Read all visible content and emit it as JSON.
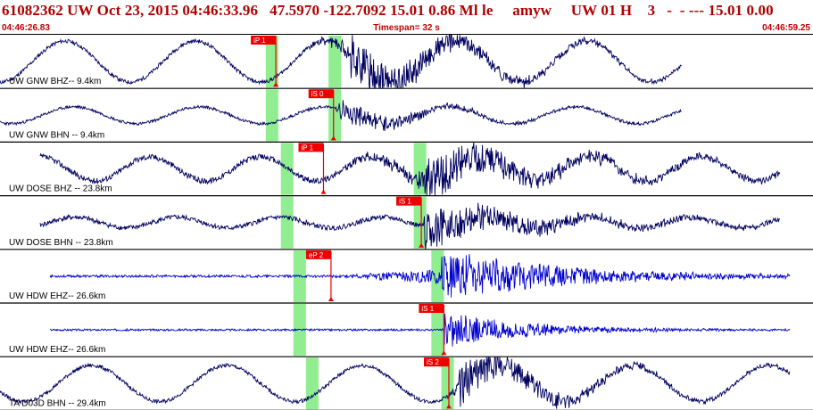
{
  "header": {
    "title": "61082362 UW Oct 23, 2015 04:46:33.96   47.5970 -122.7092 15.01 0.86 Ml le     amyw     UW 01 H    3   -  - --- 15.01 0.00",
    "start_time": "04:46:26.83",
    "timespan": "Timespan=  32 s",
    "end_time": "04:46:59.25"
  },
  "colors": {
    "title": "#b00000",
    "trace_short_period": "#000060",
    "trace_broadband": "#0000d0",
    "pick_flag": "#ee0000",
    "theoretical_window": "#90ee90"
  },
  "traces": [
    {
      "label": "UW GNW BHZ-- 9.4km",
      "pick": "iP 1",
      "seed": 11,
      "noise": 0.08,
      "wave_amp": 0.85,
      "period_s": 5.2,
      "onset_s": 11.9,
      "burst_s": 14.0,
      "burst_amp": 0.9,
      "decay_s": 4.0,
      "trace_start_s": 0.0,
      "trace_end_s": 27.2,
      "color": "#000060"
    },
    {
      "label": "UW GNW BHN -- 9.4km",
      "pick": "iS 0",
      "seed": 23,
      "noise": 0.06,
      "wave_amp": 0.35,
      "period_s": 5.0,
      "onset_s": 13.3,
      "burst_s": 13.5,
      "burst_amp": 0.5,
      "decay_s": 3.0,
      "trace_start_s": 0.0,
      "trace_end_s": 27.2,
      "color": "#000060"
    },
    {
      "label": "UW DOSE BHZ -- 23.8km",
      "pick": "iP 1",
      "seed": 37,
      "noise": 0.12,
      "wave_amp": 0.5,
      "period_s": 4.4,
      "onset_s": 13.0,
      "burst_s": 16.9,
      "burst_amp": 0.9,
      "decay_s": 4.5,
      "trace_start_s": 1.6,
      "trace_end_s": 31.1,
      "color": "#000060"
    },
    {
      "label": "UW DOSE BHN -- 23.8km",
      "pick": "iS 1",
      "seed": 41,
      "noise": 0.1,
      "wave_amp": 0.22,
      "period_s": 4.1,
      "onset_s": 16.8,
      "burst_s": 16.9,
      "burst_amp": 0.85,
      "decay_s": 4.0,
      "trace_start_s": 1.6,
      "trace_end_s": 31.1,
      "color": "#000060"
    },
    {
      "label": "UW HDW EHZ-- 26.6km",
      "pick": "eP 2",
      "seed": 53,
      "noise": 0.05,
      "wave_amp": 0.0,
      "period_s": 3.0,
      "onset_s": 13.3,
      "burst_s": 17.6,
      "burst_amp": 1.0,
      "decay_s": 4.8,
      "trace_start_s": 2.0,
      "trace_end_s": 31.5,
      "color": "#0000d0"
    },
    {
      "label": "UW HDW EHZ-- 26.6km",
      "pick": "iS 1",
      "seed": 67,
      "noise": 0.04,
      "wave_amp": 0.0,
      "period_s": 3.0,
      "onset_s": 17.6,
      "burst_s": 17.7,
      "burst_amp": 0.7,
      "decay_s": 3.2,
      "trace_start_s": 2.0,
      "trace_end_s": 31.5,
      "color": "#0000d0"
    },
    {
      "label": "TA D03D BHN -- 29.4km",
      "pick": "iS 2",
      "seed": 79,
      "noise": 0.08,
      "wave_amp": 0.75,
      "period_s": 5.4,
      "onset_s": 17.7,
      "burst_s": 18.3,
      "burst_amp": 0.8,
      "decay_s": 3.5,
      "trace_start_s": 0.0,
      "trace_end_s": 31.5,
      "color": "#000060"
    }
  ],
  "time_axis": {
    "span_s": 32.42
  },
  "theoretical_windows_s": [
    [
      [
        10.6,
        11.1
      ],
      [
        13.1,
        13.6
      ]
    ],
    [
      [
        10.6,
        11.1
      ],
      [
        13.1,
        13.6
      ]
    ],
    [
      [
        11.2,
        11.7
      ],
      [
        16.5,
        17.0
      ]
    ],
    [
      [
        11.2,
        11.7
      ],
      [
        16.5,
        17.0
      ]
    ],
    [
      [
        11.7,
        12.2
      ],
      [
        17.2,
        17.7
      ]
    ],
    [
      [
        11.7,
        12.2
      ],
      [
        17.2,
        17.7
      ]
    ],
    [
      [
        12.2,
        12.7
      ],
      [
        17.6,
        18.1
      ]
    ]
  ],
  "picks_s": [
    11.0,
    13.3,
    12.9,
    16.8,
    13.2,
    17.7,
    17.9
  ]
}
